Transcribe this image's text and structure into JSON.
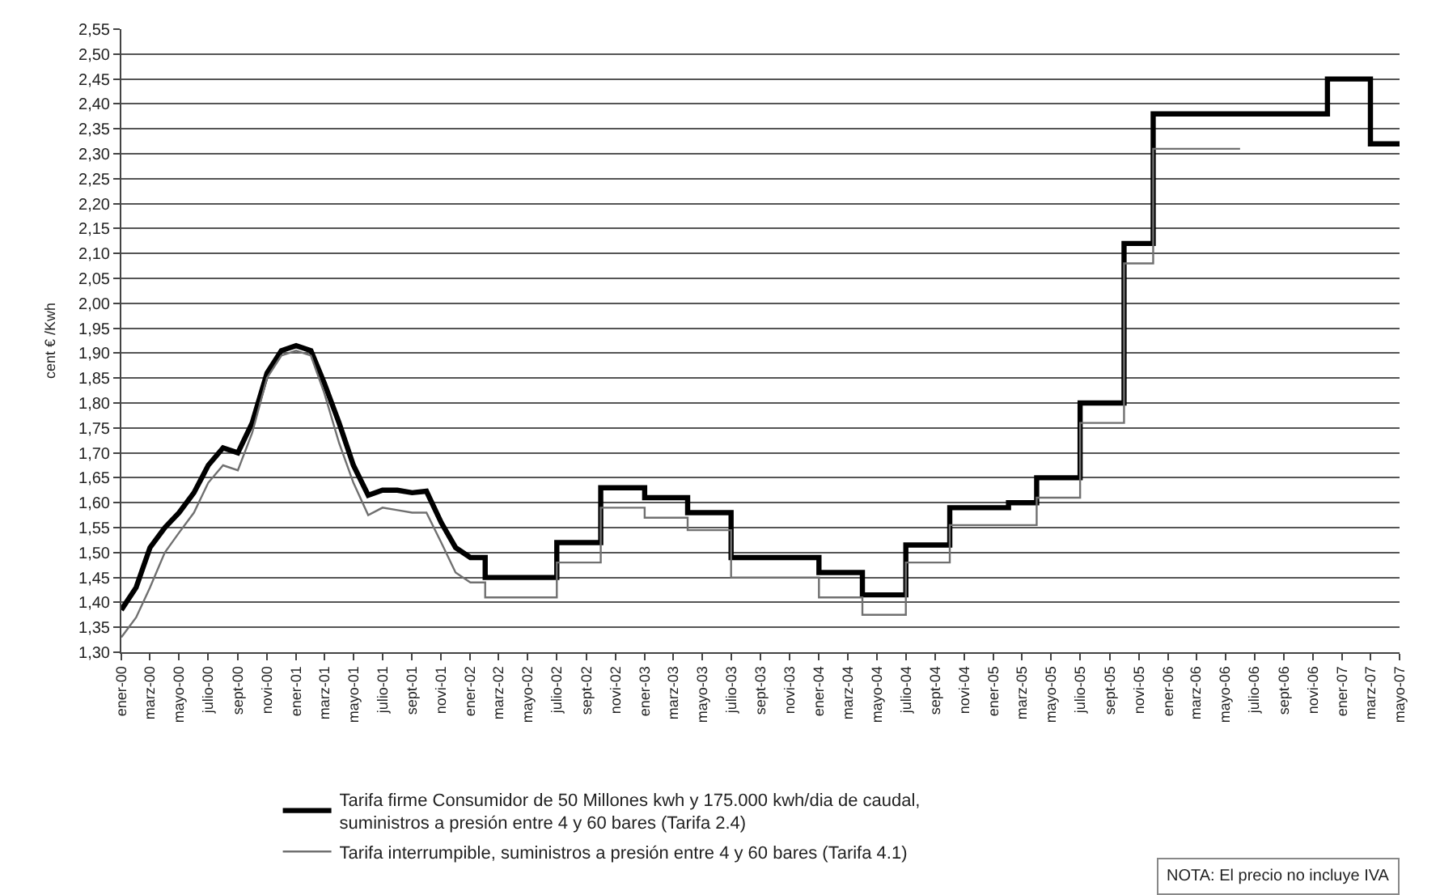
{
  "chart_data": {
    "type": "line",
    "ylabel": "cent € /Kwh",
    "grid": "y",
    "legend": "bottom",
    "line_style": "solid",
    "marker": "none",
    "xlim": [
      "2000-01",
      "2007-05"
    ],
    "xticks": [
      {
        "value": "2000-01",
        "label": "ener-00"
      },
      {
        "value": "2000-03",
        "label": "marz-00"
      },
      {
        "value": "2000-05",
        "label": "mayo-00"
      },
      {
        "value": "2000-07",
        "label": "julio-00"
      },
      {
        "value": "2000-09",
        "label": "sept-00"
      },
      {
        "value": "2000-11",
        "label": "novi-00"
      },
      {
        "value": "2001-01",
        "label": "ener-01"
      },
      {
        "value": "2001-03",
        "label": "marz-01"
      },
      {
        "value": "2001-05",
        "label": "mayo-01"
      },
      {
        "value": "2001-07",
        "label": "julio-01"
      },
      {
        "value": "2001-09",
        "label": "sept-01"
      },
      {
        "value": "2001-11",
        "label": "novi-01"
      },
      {
        "value": "2002-01",
        "label": "ener-02"
      },
      {
        "value": "2002-03",
        "label": "marz-02"
      },
      {
        "value": "2002-05",
        "label": "mayo-02"
      },
      {
        "value": "2002-07",
        "label": "julio-02"
      },
      {
        "value": "2002-09",
        "label": "sept-02"
      },
      {
        "value": "2002-11",
        "label": "novi-02"
      },
      {
        "value": "2003-01",
        "label": "ener-03"
      },
      {
        "value": "2003-03",
        "label": "marz-03"
      },
      {
        "value": "2003-05",
        "label": "mayo-03"
      },
      {
        "value": "2003-07",
        "label": "julio-03"
      },
      {
        "value": "2003-09",
        "label": "sept-03"
      },
      {
        "value": "2003-11",
        "label": "novi-03"
      },
      {
        "value": "2004-01",
        "label": "ener-04"
      },
      {
        "value": "2004-03",
        "label": "marz-04"
      },
      {
        "value": "2004-05",
        "label": "mayo-04"
      },
      {
        "value": "2004-07",
        "label": "julio-04"
      },
      {
        "value": "2004-09",
        "label": "sept-04"
      },
      {
        "value": "2004-11",
        "label": "novi-04"
      },
      {
        "value": "2005-01",
        "label": "ener-05"
      },
      {
        "value": "2005-03",
        "label": "marz-05"
      },
      {
        "value": "2005-05",
        "label": "mayo-05"
      },
      {
        "value": "2005-07",
        "label": "julio-05"
      },
      {
        "value": "2005-09",
        "label": "sept-05"
      },
      {
        "value": "2005-11",
        "label": "novi-05"
      },
      {
        "value": "2006-01",
        "label": "ener-06"
      },
      {
        "value": "2006-03",
        "label": "marz-06"
      },
      {
        "value": "2006-05",
        "label": "mayo-06"
      },
      {
        "value": "2006-07",
        "label": "julio-06"
      },
      {
        "value": "2006-09",
        "label": "sept-06"
      },
      {
        "value": "2006-11",
        "label": "novi-06"
      },
      {
        "value": "2007-01",
        "label": "ener-07"
      },
      {
        "value": "2007-03",
        "label": "marz-07"
      },
      {
        "value": "2007-05",
        "label": "mayo-07"
      }
    ],
    "ylim": [
      1.3,
      2.55
    ],
    "yticks": [
      {
        "value": 1.3,
        "label": "1,30"
      },
      {
        "value": 1.35,
        "label": "1,35"
      },
      {
        "value": 1.4,
        "label": "1,40"
      },
      {
        "value": 1.45,
        "label": "1,45"
      },
      {
        "value": 1.5,
        "label": "1,50"
      },
      {
        "value": 1.55,
        "label": "1,55"
      },
      {
        "value": 1.6,
        "label": "1,60"
      },
      {
        "value": 1.65,
        "label": "1,65"
      },
      {
        "value": 1.7,
        "label": "1,70"
      },
      {
        "value": 1.75,
        "label": "1,75"
      },
      {
        "value": 1.8,
        "label": "1,80"
      },
      {
        "value": 1.85,
        "label": "1,85"
      },
      {
        "value": 1.9,
        "label": "1,90"
      },
      {
        "value": 1.95,
        "label": "1,95"
      },
      {
        "value": 2.0,
        "label": "2,00"
      },
      {
        "value": 2.05,
        "label": "2,05"
      },
      {
        "value": 2.1,
        "label": "2,10"
      },
      {
        "value": 2.15,
        "label": "2,15"
      },
      {
        "value": 2.2,
        "label": "2,20"
      },
      {
        "value": 2.25,
        "label": "2,25"
      },
      {
        "value": 2.3,
        "label": "2,30"
      },
      {
        "value": 2.35,
        "label": "2,35"
      },
      {
        "value": 2.4,
        "label": "2,40"
      },
      {
        "value": 2.45,
        "label": "2,45"
      },
      {
        "value": 2.5,
        "label": "2,50"
      },
      {
        "value": 2.55,
        "label": "2,55"
      }
    ],
    "series": [
      {
        "name": "Tarifa firme Consumidor de 50 Millones kwh y 175.000 kwh/dia de caudal, suministros a presión entre 4 y 60 bares (Tarifa 2.4)",
        "color": "#000000",
        "x": [
          "2000-01",
          "2000-02",
          "2000-03",
          "2000-04",
          "2000-05",
          "2000-06",
          "2000-07",
          "2000-08",
          "2000-09",
          "2000-10",
          "2000-11",
          "2000-12",
          "2001-01",
          "2001-02",
          "2001-03",
          "2001-04",
          "2001-05",
          "2001-06",
          "2001-07",
          "2001-08",
          "2001-09",
          "2001-10",
          "2001-11",
          "2001-12",
          "2002-01",
          "2002-02",
          "2002-02",
          "2002-07",
          "2002-07",
          "2002-10",
          "2002-10",
          "2003-01",
          "2003-01",
          "2003-04",
          "2003-04",
          "2003-07",
          "2003-07",
          "2004-01",
          "2004-01",
          "2004-04",
          "2004-04",
          "2004-07",
          "2004-07",
          "2004-10",
          "2004-10",
          "2005-02",
          "2005-02",
          "2005-04",
          "2005-04",
          "2005-07",
          "2005-07",
          "2005-10",
          "2005-10",
          "2005-12",
          "2005-12",
          "2006-12",
          "2006-12",
          "2007-03",
          "2007-03",
          "2007-05"
        ],
        "values": [
          1.385,
          1.43,
          1.51,
          1.55,
          1.58,
          1.62,
          1.675,
          1.71,
          1.7,
          1.76,
          1.86,
          1.905,
          1.915,
          1.905,
          1.84,
          1.76,
          1.675,
          1.615,
          1.625,
          1.625,
          1.62,
          1.623,
          1.56,
          1.51,
          1.49,
          1.49,
          1.45,
          1.45,
          1.52,
          1.52,
          1.63,
          1.63,
          1.61,
          1.61,
          1.58,
          1.58,
          1.49,
          1.49,
          1.46,
          1.46,
          1.415,
          1.415,
          1.515,
          1.515,
          1.59,
          1.59,
          1.6,
          1.6,
          1.65,
          1.65,
          1.8,
          1.8,
          2.12,
          2.12,
          2.38,
          2.38,
          2.45,
          2.45,
          2.32,
          2.32
        ]
      },
      {
        "name": "Tarifa interrumpible, suministros a presión entre 4 y 60 bares (Tarifa 4.1)",
        "color": "#707070",
        "x": [
          "2000-01",
          "2000-02",
          "2000-03",
          "2000-04",
          "2000-05",
          "2000-06",
          "2000-07",
          "2000-08",
          "2000-09",
          "2000-10",
          "2000-11",
          "2000-12",
          "2001-01",
          "2001-02",
          "2001-03",
          "2001-04",
          "2001-05",
          "2001-06",
          "2001-07",
          "2001-08",
          "2001-09",
          "2001-10",
          "2001-11",
          "2001-12",
          "2002-01",
          "2002-02",
          "2002-02",
          "2002-07",
          "2002-07",
          "2002-10",
          "2002-10",
          "2003-01",
          "2003-01",
          "2003-04",
          "2003-04",
          "2003-07",
          "2003-07",
          "2004-01",
          "2004-01",
          "2004-04",
          "2004-04",
          "2004-07",
          "2004-07",
          "2004-10",
          "2004-10",
          "2005-04",
          "2005-04",
          "2005-07",
          "2005-07",
          "2005-10",
          "2005-10",
          "2005-12",
          "2005-12",
          "2006-06"
        ],
        "values": [
          1.33,
          1.37,
          1.43,
          1.5,
          1.54,
          1.58,
          1.64,
          1.675,
          1.665,
          1.74,
          1.85,
          1.895,
          1.905,
          1.895,
          1.82,
          1.72,
          1.64,
          1.575,
          1.59,
          1.585,
          1.58,
          1.58,
          1.52,
          1.46,
          1.44,
          1.44,
          1.41,
          1.41,
          1.48,
          1.48,
          1.59,
          1.59,
          1.57,
          1.57,
          1.545,
          1.545,
          1.45,
          1.45,
          1.41,
          1.41,
          1.375,
          1.375,
          1.48,
          1.48,
          1.555,
          1.555,
          1.61,
          1.61,
          1.76,
          1.76,
          2.08,
          2.08,
          2.31,
          2.31
        ]
      }
    ],
    "annotations": [
      "NOTA: El precio no incluye IVA"
    ]
  }
}
